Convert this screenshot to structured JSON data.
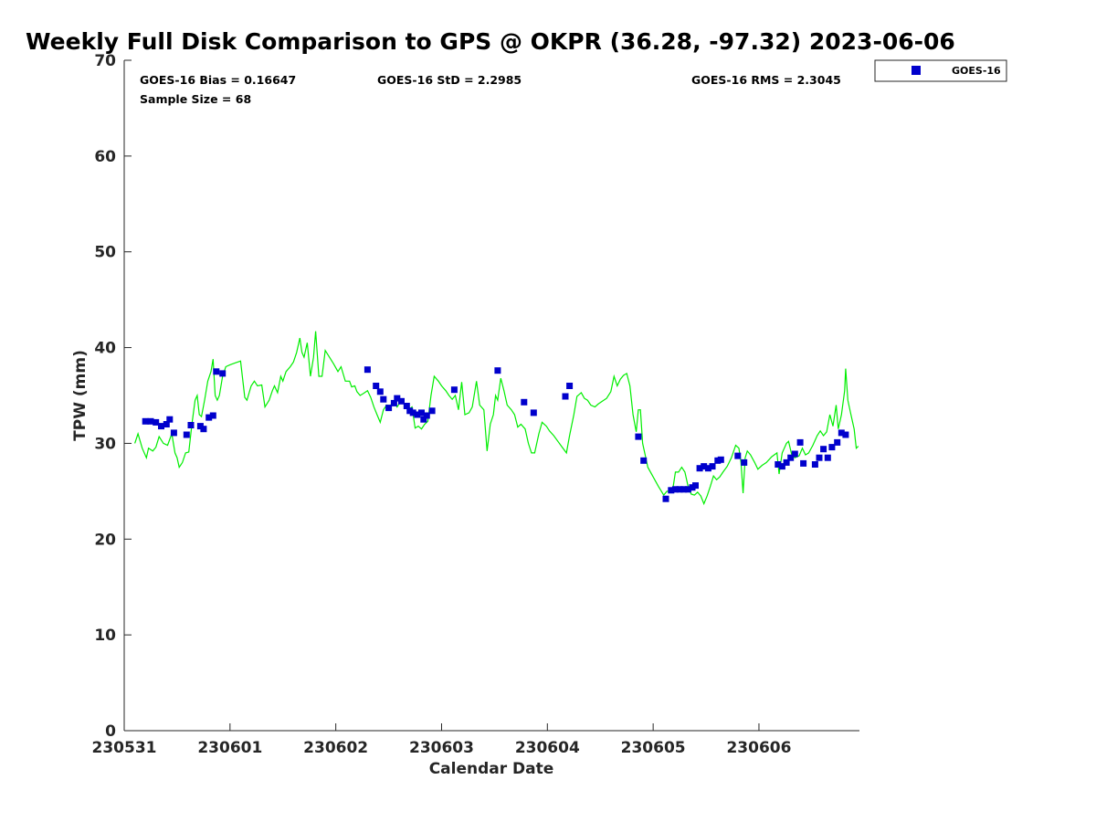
{
  "chart_data": {
    "type": "scatter",
    "title": "Weekly Full Disk Comparison to GPS @ OKPR (36.28, -97.32) 2023-06-06",
    "xlabel": "Calendar Date",
    "ylabel": "TPW (mm)",
    "xlim": [
      0,
      6.95
    ],
    "ylim": [
      0,
      70
    ],
    "x_ticks": [
      0,
      1,
      2,
      3,
      4,
      5,
      6
    ],
    "x_tick_labels": [
      "230531",
      "230601",
      "230602",
      "230603",
      "230604",
      "230605",
      "230606"
    ],
    "y_ticks": [
      0,
      10,
      20,
      30,
      40,
      50,
      60,
      70
    ],
    "y_tick_labels": [
      "0",
      "10",
      "20",
      "30",
      "40",
      "50",
      "60",
      "70"
    ],
    "grid": false,
    "legend_position": "top-right, outside",
    "stats": {
      "bias": "GOES-16 Bias = 0.16647",
      "std": "GOES-16 StD = 2.2985",
      "rms": "GOES-16 RMS = 2.3045",
      "sample": "Sample Size = 68"
    },
    "series": [
      {
        "name": "GOES-16",
        "kind": "scatter",
        "marker": "square",
        "color": "#0000cc",
        "points": [
          [
            0.2,
            32.3
          ],
          [
            0.25,
            32.3
          ],
          [
            0.3,
            32.2
          ],
          [
            0.35,
            31.8
          ],
          [
            0.4,
            32.0
          ],
          [
            0.43,
            32.5
          ],
          [
            0.47,
            31.1
          ],
          [
            0.59,
            30.9
          ],
          [
            0.63,
            31.9
          ],
          [
            0.72,
            31.8
          ],
          [
            0.75,
            31.5
          ],
          [
            0.8,
            32.7
          ],
          [
            0.84,
            32.9
          ],
          [
            0.87,
            37.5
          ],
          [
            0.93,
            37.3
          ],
          [
            2.3,
            37.7
          ],
          [
            2.38,
            36.0
          ],
          [
            2.42,
            35.4
          ],
          [
            2.45,
            34.6
          ],
          [
            2.5,
            33.7
          ],
          [
            2.55,
            34.2
          ],
          [
            2.58,
            34.7
          ],
          [
            2.62,
            34.4
          ],
          [
            2.67,
            33.9
          ],
          [
            2.7,
            33.4
          ],
          [
            2.73,
            33.2
          ],
          [
            2.77,
            33.0
          ],
          [
            2.81,
            33.2
          ],
          [
            2.83,
            32.5
          ],
          [
            2.86,
            32.9
          ],
          [
            2.91,
            33.4
          ],
          [
            3.12,
            35.6
          ],
          [
            3.53,
            37.6
          ],
          [
            3.78,
            34.3
          ],
          [
            3.87,
            33.2
          ],
          [
            4.17,
            34.9
          ],
          [
            4.21,
            36.0
          ],
          [
            4.86,
            30.7
          ],
          [
            4.91,
            28.2
          ],
          [
            5.12,
            24.2
          ],
          [
            5.17,
            25.1
          ],
          [
            5.21,
            25.2
          ],
          [
            5.25,
            25.2
          ],
          [
            5.29,
            25.2
          ],
          [
            5.33,
            25.2
          ],
          [
            5.37,
            25.4
          ],
          [
            5.4,
            25.6
          ],
          [
            5.44,
            27.4
          ],
          [
            5.48,
            27.6
          ],
          [
            5.52,
            27.4
          ],
          [
            5.56,
            27.6
          ],
          [
            5.61,
            28.2
          ],
          [
            5.64,
            28.3
          ],
          [
            5.8,
            28.7
          ],
          [
            5.86,
            28.0
          ],
          [
            6.18,
            27.8
          ],
          [
            6.22,
            27.6
          ],
          [
            6.26,
            28.0
          ],
          [
            6.3,
            28.5
          ],
          [
            6.34,
            28.9
          ],
          [
            6.39,
            30.1
          ],
          [
            6.42,
            27.9
          ],
          [
            6.53,
            27.8
          ],
          [
            6.57,
            28.5
          ],
          [
            6.61,
            29.4
          ],
          [
            6.65,
            28.5
          ],
          [
            6.69,
            29.6
          ],
          [
            6.74,
            30.1
          ],
          [
            6.78,
            31.1
          ],
          [
            6.82,
            30.9
          ]
        ]
      },
      {
        "name": "",
        "kind": "line",
        "color": "#00ee00",
        "points": [
          [
            0.1,
            30.0
          ],
          [
            0.13,
            31.0
          ],
          [
            0.17,
            29.5
          ],
          [
            0.21,
            28.5
          ],
          [
            0.23,
            29.5
          ],
          [
            0.27,
            29.2
          ],
          [
            0.3,
            29.6
          ],
          [
            0.33,
            30.7
          ],
          [
            0.37,
            30.0
          ],
          [
            0.41,
            29.8
          ],
          [
            0.45,
            31.0
          ],
          [
            0.48,
            29.0
          ],
          [
            0.5,
            28.5
          ],
          [
            0.52,
            27.5
          ],
          [
            0.55,
            28.0
          ],
          [
            0.58,
            29.0
          ],
          [
            0.61,
            29.1
          ],
          [
            0.64,
            32.0
          ],
          [
            0.67,
            34.5
          ],
          [
            0.69,
            35.0
          ],
          [
            0.71,
            33.0
          ],
          [
            0.73,
            32.8
          ],
          [
            0.76,
            34.5
          ],
          [
            0.79,
            36.5
          ],
          [
            0.82,
            37.5
          ],
          [
            0.84,
            38.8
          ],
          [
            0.86,
            35.0
          ],
          [
            0.88,
            34.5
          ],
          [
            0.9,
            35.0
          ],
          [
            0.93,
            37.0
          ],
          [
            0.96,
            38.0
          ],
          [
            1.0,
            38.2
          ],
          [
            1.05,
            38.4
          ],
          [
            1.1,
            38.6
          ],
          [
            1.14,
            34.8
          ],
          [
            1.16,
            34.5
          ],
          [
            1.2,
            36.0
          ],
          [
            1.23,
            36.5
          ],
          [
            1.26,
            36.0
          ],
          [
            1.3,
            36.1
          ],
          [
            1.33,
            33.8
          ],
          [
            1.37,
            34.5
          ],
          [
            1.4,
            35.5
          ],
          [
            1.42,
            36.0
          ],
          [
            1.45,
            35.3
          ],
          [
            1.48,
            37.0
          ],
          [
            1.5,
            36.5
          ],
          [
            1.53,
            37.5
          ],
          [
            1.57,
            38.0
          ],
          [
            1.6,
            38.5
          ],
          [
            1.63,
            39.5
          ],
          [
            1.66,
            41.0
          ],
          [
            1.68,
            39.5
          ],
          [
            1.7,
            39.0
          ],
          [
            1.73,
            40.5
          ],
          [
            1.76,
            37.0
          ],
          [
            1.79,
            39.0
          ],
          [
            1.81,
            41.7
          ],
          [
            1.84,
            37.0
          ],
          [
            1.87,
            37.0
          ],
          [
            1.9,
            39.7
          ],
          [
            1.94,
            39.0
          ],
          [
            1.98,
            38.3
          ],
          [
            2.02,
            37.5
          ],
          [
            2.05,
            38.0
          ],
          [
            2.09,
            36.5
          ],
          [
            2.13,
            36.5
          ],
          [
            2.15,
            35.9
          ],
          [
            2.18,
            36.0
          ],
          [
            2.2,
            35.4
          ],
          [
            2.23,
            35.0
          ],
          [
            2.26,
            35.2
          ],
          [
            2.3,
            35.5
          ],
          [
            2.33,
            34.8
          ],
          [
            2.36,
            33.8
          ],
          [
            2.39,
            33.0
          ],
          [
            2.42,
            32.2
          ],
          [
            2.45,
            33.5
          ],
          [
            2.48,
            34.0
          ],
          [
            2.51,
            33.9
          ],
          [
            2.55,
            34.3
          ],
          [
            2.58,
            33.8
          ],
          [
            2.62,
            34.5
          ],
          [
            2.65,
            34.1
          ],
          [
            2.69,
            33.5
          ],
          [
            2.72,
            33.8
          ],
          [
            2.75,
            31.6
          ],
          [
            2.78,
            31.8
          ],
          [
            2.81,
            31.5
          ],
          [
            2.84,
            32.0
          ],
          [
            2.87,
            32.3
          ],
          [
            2.9,
            35.0
          ],
          [
            2.93,
            37.0
          ],
          [
            2.97,
            36.5
          ],
          [
            3.0,
            36.0
          ],
          [
            3.04,
            35.5
          ],
          [
            3.07,
            35.0
          ],
          [
            3.1,
            34.6
          ],
          [
            3.13,
            35.0
          ],
          [
            3.16,
            33.5
          ],
          [
            3.19,
            36.4
          ],
          [
            3.22,
            33.0
          ],
          [
            3.26,
            33.2
          ],
          [
            3.29,
            33.8
          ],
          [
            3.33,
            36.5
          ],
          [
            3.36,
            34.0
          ],
          [
            3.4,
            33.5
          ],
          [
            3.43,
            29.2
          ],
          [
            3.46,
            32.0
          ],
          [
            3.49,
            33.0
          ],
          [
            3.51,
            35.0
          ],
          [
            3.53,
            34.5
          ],
          [
            3.56,
            36.8
          ],
          [
            3.59,
            35.5
          ],
          [
            3.62,
            34.0
          ],
          [
            3.66,
            33.5
          ],
          [
            3.69,
            33.0
          ],
          [
            3.72,
            31.7
          ],
          [
            3.75,
            32.0
          ],
          [
            3.79,
            31.5
          ],
          [
            3.82,
            30.0
          ],
          [
            3.85,
            29.0
          ],
          [
            3.88,
            29.0
          ],
          [
            3.92,
            31.0
          ],
          [
            3.95,
            32.2
          ],
          [
            3.99,
            31.8
          ],
          [
            4.02,
            31.3
          ],
          [
            4.06,
            30.8
          ],
          [
            4.1,
            30.2
          ],
          [
            4.14,
            29.6
          ],
          [
            4.18,
            29.0
          ],
          [
            4.21,
            30.8
          ],
          [
            4.25,
            33.0
          ],
          [
            4.28,
            34.9
          ],
          [
            4.32,
            35.3
          ],
          [
            4.35,
            34.7
          ],
          [
            4.38,
            34.5
          ],
          [
            4.41,
            34.0
          ],
          [
            4.45,
            33.8
          ],
          [
            4.48,
            34.1
          ],
          [
            4.52,
            34.4
          ],
          [
            4.56,
            34.7
          ],
          [
            4.6,
            35.4
          ],
          [
            4.63,
            37.0
          ],
          [
            4.66,
            36.0
          ],
          [
            4.69,
            36.7
          ],
          [
            4.72,
            37.1
          ],
          [
            4.75,
            37.3
          ],
          [
            4.78,
            36.0
          ],
          [
            4.81,
            33.0
          ],
          [
            4.84,
            31.2
          ],
          [
            4.86,
            33.5
          ],
          [
            4.88,
            33.5
          ],
          [
            4.9,
            30.0
          ],
          [
            4.92,
            29.0
          ],
          [
            4.95,
            27.5
          ],
          [
            5.0,
            26.5
          ],
          [
            5.05,
            25.5
          ],
          [
            5.1,
            24.6
          ],
          [
            5.13,
            25.0
          ],
          [
            5.16,
            25.0
          ],
          [
            5.19,
            25.5
          ],
          [
            5.21,
            27.0
          ],
          [
            5.24,
            27.0
          ],
          [
            5.27,
            27.5
          ],
          [
            5.3,
            27.0
          ],
          [
            5.33,
            25.5
          ],
          [
            5.36,
            24.7
          ],
          [
            5.39,
            24.6
          ],
          [
            5.42,
            24.9
          ],
          [
            5.45,
            24.5
          ],
          [
            5.48,
            23.7
          ],
          [
            5.51,
            24.5
          ],
          [
            5.54,
            25.5
          ],
          [
            5.57,
            26.6
          ],
          [
            5.6,
            26.2
          ],
          [
            5.63,
            26.5
          ],
          [
            5.66,
            27.0
          ],
          [
            5.7,
            27.6
          ],
          [
            5.74,
            28.5
          ],
          [
            5.78,
            29.8
          ],
          [
            5.81,
            29.5
          ],
          [
            5.83,
            28.0
          ],
          [
            5.85,
            24.8
          ],
          [
            5.87,
            28.5
          ],
          [
            5.89,
            29.2
          ],
          [
            5.92,
            28.8
          ],
          [
            5.96,
            28.0
          ],
          [
            5.99,
            27.3
          ],
          [
            6.03,
            27.7
          ],
          [
            6.07,
            28.0
          ],
          [
            6.12,
            28.6
          ],
          [
            6.17,
            29.0
          ],
          [
            6.19,
            26.8
          ],
          [
            6.22,
            29.0
          ],
          [
            6.26,
            30.0
          ],
          [
            6.28,
            30.2
          ],
          [
            6.31,
            28.8
          ],
          [
            6.34,
            28.5
          ],
          [
            6.38,
            28.7
          ],
          [
            6.41,
            29.5
          ],
          [
            6.44,
            28.8
          ],
          [
            6.47,
            29.0
          ],
          [
            6.51,
            29.8
          ],
          [
            6.55,
            30.8
          ],
          [
            6.58,
            31.3
          ],
          [
            6.61,
            30.8
          ],
          [
            6.64,
            31.2
          ],
          [
            6.67,
            33.0
          ],
          [
            6.7,
            31.8
          ],
          [
            6.73,
            34.0
          ],
          [
            6.75,
            31.5
          ],
          [
            6.78,
            33.0
          ],
          [
            6.81,
            35.5
          ],
          [
            6.82,
            37.8
          ],
          [
            6.84,
            34.5
          ],
          [
            6.87,
            33.0
          ],
          [
            6.9,
            31.5
          ],
          [
            6.92,
            29.5
          ],
          [
            6.94,
            29.7
          ]
        ]
      }
    ]
  },
  "colors": {
    "scatter": "#0000cc",
    "line": "#00ee00",
    "axis": "#262626"
  }
}
